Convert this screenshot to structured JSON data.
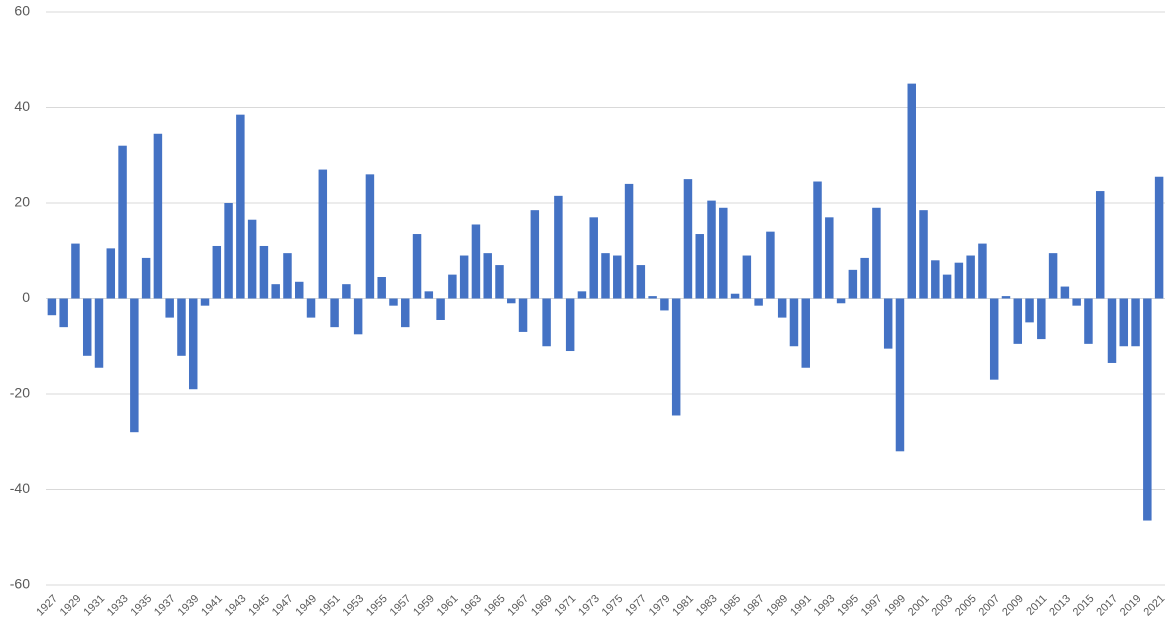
{
  "chart_data": {
    "type": "bar",
    "color": "#4472c4",
    "grid": true,
    "ylim": [
      -60,
      60
    ],
    "yticks": [
      -60,
      -40,
      -20,
      0,
      20,
      40,
      60
    ],
    "categories": [
      "1927",
      null,
      "1929",
      null,
      "1931",
      null,
      "1933",
      null,
      "1935",
      null,
      "1937",
      null,
      "1939",
      null,
      "1941",
      null,
      "1943",
      null,
      "1945",
      null,
      "1947",
      null,
      "1949",
      null,
      "1951",
      null,
      "1953",
      null,
      "1955",
      null,
      "1957",
      null,
      "1959",
      null,
      "1961",
      null,
      "1963",
      null,
      "1965",
      null,
      "1967",
      null,
      "1969",
      null,
      "1971",
      null,
      "1973",
      null,
      "1975",
      null,
      "1977",
      null,
      "1979",
      null,
      "1981",
      null,
      "1983",
      null,
      "1985",
      null,
      "1987",
      null,
      "1989",
      null,
      "1991",
      null,
      "1993",
      null,
      "1995",
      null,
      "1997",
      null,
      "1999",
      null,
      "2001",
      null,
      "2003",
      null,
      "2005",
      null,
      "2007",
      null,
      "2009",
      null,
      "2011",
      null,
      "2013",
      null,
      "2015",
      null,
      "2017",
      null,
      "2019",
      null,
      "2021"
    ],
    "values": [
      -3.5,
      -6,
      11.5,
      -12,
      -14.5,
      10.5,
      32,
      -28,
      8.5,
      34.5,
      -4,
      -12,
      -19,
      -1.5,
      11,
      20,
      38.5,
      16.5,
      11,
      3,
      9.5,
      3.5,
      -4,
      27,
      -6,
      3,
      -7.5,
      26,
      4.5,
      -1.5,
      -6,
      13.5,
      1.5,
      -4.5,
      5,
      9,
      15.5,
      9.5,
      7,
      -1,
      -7,
      18.5,
      -10,
      21.5,
      -11,
      1.5,
      17,
      9.5,
      9,
      24,
      7,
      0.5,
      -2.5,
      -24.5,
      25,
      13.5,
      20.5,
      19,
      1,
      9,
      -1.5,
      14,
      -4,
      -10,
      -14.5,
      24.5,
      17,
      -1,
      6,
      8.5,
      19,
      -10.5,
      -32,
      45,
      18.5,
      8,
      5,
      7.5,
      9,
      11.5,
      -17,
      0.5,
      -9.5,
      -5,
      -8.5,
      9.5,
      2.5,
      -1.5,
      -9.5,
      22.5,
      -13.5,
      -10,
      -10,
      -46.5,
      25.5
    ]
  }
}
